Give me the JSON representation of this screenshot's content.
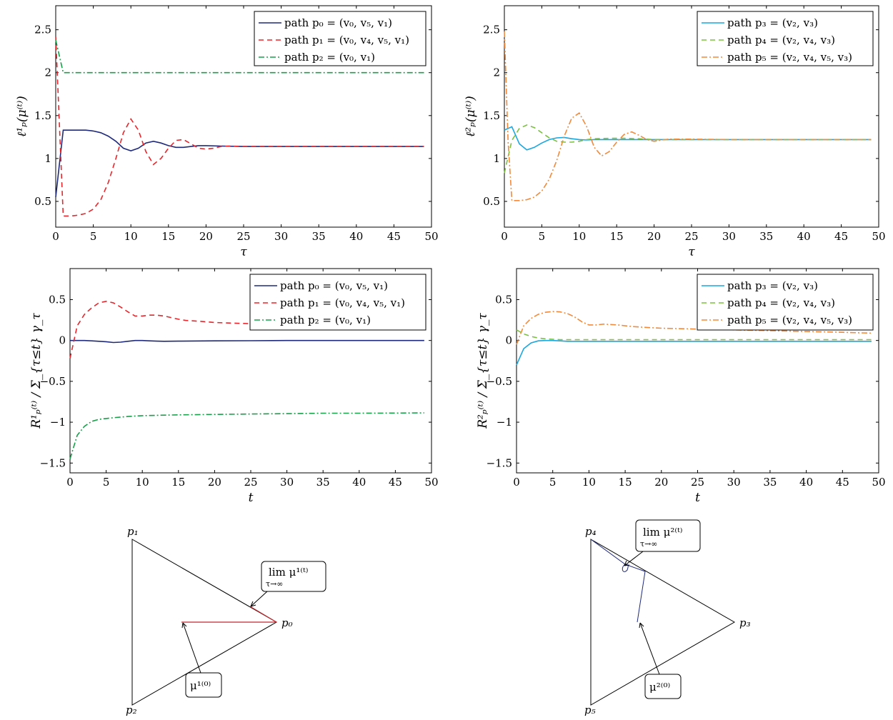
{
  "charts": [
    {
      "type": "line",
      "xlabel": "τ",
      "ylabel": "ℓ¹ₚ(μ⁽ᵗ⁾)",
      "xlim": [
        0,
        50
      ],
      "ylim": [
        0.2,
        2.78
      ],
      "xticks": [
        "0",
        "5",
        "10",
        "15",
        "20",
        "25",
        "30",
        "35",
        "40",
        "45",
        "50"
      ],
      "yticks": [
        "0.5",
        "1",
        "1.5",
        "2",
        "2.5"
      ],
      "ytick_values": [
        0.5,
        1,
        1.5,
        2,
        2.5
      ],
      "legend_position": "top-right",
      "series": [
        {
          "name": "path p₀ = (v₀, v₅, v₁)",
          "color": "#1f2a7a",
          "dash": "solid",
          "x": [
            0,
            1,
            2,
            3,
            4,
            5,
            6,
            7,
            8,
            9,
            10,
            11,
            12,
            13,
            14,
            15,
            16,
            17,
            18,
            19,
            20,
            22,
            25,
            30,
            35,
            40,
            45,
            49
          ],
          "y": [
            0.55,
            1.33,
            1.33,
            1.33,
            1.33,
            1.32,
            1.3,
            1.26,
            1.2,
            1.12,
            1.09,
            1.12,
            1.18,
            1.2,
            1.18,
            1.15,
            1.13,
            1.13,
            1.14,
            1.15,
            1.15,
            1.145,
            1.14,
            1.14,
            1.14,
            1.14,
            1.14,
            1.14
          ]
        },
        {
          "name": "path p₁ = (v₀, v₄, v₅, v₁)",
          "color": "#e8262b",
          "dash": "7,5",
          "x": [
            0,
            1,
            2,
            3,
            4,
            5,
            6,
            7,
            8,
            9,
            10,
            11,
            12,
            13,
            14,
            15,
            16,
            17,
            18,
            19,
            20,
            21,
            22,
            23,
            25,
            30,
            35,
            40,
            45,
            49
          ],
          "y": [
            2.42,
            0.33,
            0.33,
            0.34,
            0.36,
            0.41,
            0.52,
            0.72,
            1.0,
            1.3,
            1.46,
            1.33,
            1.08,
            0.93,
            1.0,
            1.12,
            1.21,
            1.22,
            1.17,
            1.12,
            1.11,
            1.12,
            1.14,
            1.145,
            1.14,
            1.14,
            1.14,
            1.14,
            1.14,
            1.14
          ]
        },
        {
          "name": "path p₂ = (v₀, v₁)",
          "color": "#19a04a",
          "dash": "8,3,2,3",
          "x": [
            0,
            1,
            5,
            10,
            20,
            30,
            40,
            49
          ],
          "y": [
            2.38,
            2.0,
            2.0,
            2.0,
            2.0,
            2.0,
            2.0,
            2.0
          ]
        }
      ]
    },
    {
      "type": "line",
      "xlabel": "τ",
      "ylabel": "ℓ²ₚ(μ⁽ᵗ⁾)",
      "xlim": [
        0,
        50
      ],
      "ylim": [
        0.2,
        2.78
      ],
      "xticks": [
        "0",
        "5",
        "10",
        "15",
        "20",
        "25",
        "30",
        "35",
        "40",
        "45",
        "50"
      ],
      "yticks": [
        "0.5",
        "1",
        "1.5",
        "2",
        "2.5"
      ],
      "ytick_values": [
        0.5,
        1,
        1.5,
        2,
        2.5
      ],
      "legend_position": "top-right",
      "series": [
        {
          "name": "path p₃ = (v₂, v₃)",
          "color": "#1aa7e0",
          "dash": "solid",
          "x": [
            0,
            1,
            2,
            3,
            4,
            5,
            6,
            7,
            8,
            9,
            10,
            11,
            12,
            15,
            20,
            25,
            30,
            35,
            40,
            45,
            49
          ],
          "y": [
            1.33,
            1.37,
            1.17,
            1.1,
            1.13,
            1.18,
            1.22,
            1.24,
            1.245,
            1.23,
            1.22,
            1.215,
            1.22,
            1.22,
            1.22,
            1.22,
            1.22,
            1.22,
            1.22,
            1.22,
            1.22
          ]
        },
        {
          "name": "path p₄ = (v₂, v₄, v₃)",
          "color": "#7cc142",
          "dash": "7,5",
          "x": [
            0,
            1,
            2,
            3,
            4,
            5,
            6,
            7,
            8,
            9,
            10,
            11,
            12,
            14,
            16,
            18,
            20,
            25,
            30,
            35,
            40,
            45,
            49
          ],
          "y": [
            0.83,
            1.21,
            1.35,
            1.39,
            1.36,
            1.3,
            1.24,
            1.2,
            1.19,
            1.19,
            1.2,
            1.22,
            1.23,
            1.235,
            1.235,
            1.23,
            1.22,
            1.22,
            1.22,
            1.22,
            1.22,
            1.22,
            1.22
          ]
        },
        {
          "name": "path p₅ = (v₂, v₄, v₅, v₃)",
          "color": "#f28a3c",
          "dash": "8,3,2,3",
          "x": [
            0,
            0.5,
            1,
            2,
            3,
            4,
            5,
            6,
            7,
            8,
            9,
            10,
            11,
            12,
            13,
            14,
            15,
            16,
            17,
            18,
            19,
            20,
            21,
            22,
            25,
            30,
            35,
            40,
            45,
            49
          ],
          "y": [
            2.48,
            1.2,
            0.51,
            0.51,
            0.52,
            0.55,
            0.62,
            0.76,
            0.98,
            1.26,
            1.47,
            1.53,
            1.37,
            1.13,
            1.03,
            1.08,
            1.19,
            1.28,
            1.31,
            1.27,
            1.22,
            1.2,
            1.215,
            1.225,
            1.225,
            1.22,
            1.22,
            1.22,
            1.22,
            1.22
          ]
        }
      ]
    },
    {
      "type": "line",
      "xlabel": "t",
      "ylabel": "R¹ₚ⁽ᵗ⁾ / Σ_{τ≤t} γ_τ",
      "xlim": [
        0,
        50
      ],
      "ylim": [
        -1.62,
        0.88
      ],
      "xticks": [
        "0",
        "5",
        "10",
        "15",
        "20",
        "25",
        "30",
        "35",
        "40",
        "45",
        "50"
      ],
      "yticks": [
        "0.5",
        "0",
        "−0.5",
        "−1",
        "−1.5"
      ],
      "ytick_values": [
        0.5,
        0,
        -0.5,
        -1,
        -1.5
      ],
      "legend_position": "top-right",
      "series": [
        {
          "name": "path p₀ = (v₀, v₅, v₁)",
          "color": "#1f2a7a",
          "dash": "solid",
          "x": [
            0,
            1,
            2,
            3,
            4,
            5,
            6,
            7,
            8,
            9,
            10,
            11,
            12,
            13,
            15,
            20,
            25,
            30,
            40,
            49
          ],
          "y": [
            0.0,
            0.0,
            0.0,
            -0.005,
            -0.01,
            -0.015,
            -0.025,
            -0.02,
            -0.01,
            0.0,
            0.0,
            -0.005,
            -0.008,
            -0.01,
            -0.008,
            -0.005,
            -0.003,
            0.0,
            0.0,
            0.0
          ]
        },
        {
          "name": "path p₁ = (v₀, v₄, v₅, v₁)",
          "color": "#e8262b",
          "dash": "7,5",
          "x": [
            0,
            1,
            2,
            3,
            4,
            5,
            6,
            7,
            8,
            9,
            10,
            11,
            12,
            13,
            14,
            15,
            16,
            18,
            20,
            25,
            30,
            35,
            40,
            45,
            49
          ],
          "y": [
            -0.22,
            0.18,
            0.32,
            0.4,
            0.46,
            0.48,
            0.46,
            0.41,
            0.35,
            0.3,
            0.3,
            0.31,
            0.31,
            0.3,
            0.28,
            0.26,
            0.245,
            0.235,
            0.22,
            0.205,
            0.19,
            0.18,
            0.17,
            0.16,
            0.15
          ]
        },
        {
          "name": "path p₂ = (v₀, v₁)",
          "color": "#19a04a",
          "dash": "8,3,2,3",
          "x": [
            0,
            1,
            2,
            3,
            4,
            5,
            6,
            8,
            10,
            15,
            20,
            25,
            30,
            35,
            40,
            45,
            49
          ],
          "y": [
            -1.45,
            -1.16,
            -1.05,
            -0.99,
            -0.965,
            -0.955,
            -0.945,
            -0.93,
            -0.92,
            -0.91,
            -0.905,
            -0.9,
            -0.895,
            -0.89,
            -0.89,
            -0.888,
            -0.886
          ]
        }
      ]
    },
    {
      "type": "line",
      "xlabel": "t",
      "ylabel": "R²ₚ⁽ᵗ⁾ / Σ_{τ≤t} γ_τ",
      "xlim": [
        0,
        50
      ],
      "ylim": [
        -1.62,
        0.88
      ],
      "xticks": [
        "0",
        "5",
        "10",
        "15",
        "20",
        "25",
        "30",
        "35",
        "40",
        "45",
        "50"
      ],
      "yticks": [
        "0.5",
        "0",
        "−0.5",
        "−1",
        "−1.5"
      ],
      "ytick_values": [
        0.5,
        0,
        -0.5,
        -1,
        -1.5
      ],
      "legend_position": "top-right",
      "series": [
        {
          "name": "path p₃ = (v₂, v₃)",
          "color": "#1aa7e0",
          "dash": "solid",
          "x": [
            0,
            1,
            2,
            3,
            4,
            5,
            6,
            7,
            8,
            10,
            15,
            20,
            30,
            40,
            49
          ],
          "y": [
            -0.3,
            -0.1,
            -0.03,
            -0.005,
            0.0,
            0.0,
            -0.005,
            -0.01,
            -0.01,
            -0.01,
            -0.01,
            -0.01,
            -0.01,
            -0.01,
            -0.01
          ]
        },
        {
          "name": "path p₄ = (v₂, v₄, v₃)",
          "color": "#7cc142",
          "dash": "7,5",
          "x": [
            0,
            1,
            2,
            3,
            4,
            5,
            6,
            8,
            10,
            15,
            20,
            30,
            40,
            49
          ],
          "y": [
            0.13,
            0.08,
            0.05,
            0.03,
            0.02,
            0.015,
            0.01,
            0.01,
            0.01,
            0.01,
            0.01,
            0.01,
            0.01,
            0.01
          ]
        },
        {
          "name": "path p₅ = (v₂, v₄, v₅, v₃)",
          "color": "#f28a3c",
          "dash": "8,3,2,3",
          "x": [
            0,
            1,
            2,
            3,
            4,
            5,
            6,
            7,
            8,
            9,
            10,
            11,
            12,
            14,
            16,
            18,
            20,
            25,
            30,
            35,
            40,
            45,
            49
          ],
          "y": [
            -0.05,
            0.18,
            0.27,
            0.32,
            0.345,
            0.355,
            0.35,
            0.33,
            0.29,
            0.23,
            0.19,
            0.19,
            0.2,
            0.19,
            0.17,
            0.16,
            0.15,
            0.14,
            0.13,
            0.12,
            0.11,
            0.1,
            0.09
          ]
        }
      ]
    }
  ],
  "simplex_left": {
    "labels": {
      "top": "p₁",
      "right": "p₀",
      "bottom": "p₂"
    },
    "annotation_limit": "lim μ¹⁽ᵗ⁾",
    "annotation_limit_sub": "τ→∞",
    "annotation_start": "μ¹⁽⁰⁾",
    "color": "#c0282d"
  },
  "simplex_right": {
    "labels": {
      "top": "p₄",
      "right": "p₃",
      "bottom": "p₅"
    },
    "annotation_limit": "lim μ²⁽ᵗ⁾",
    "annotation_limit_sub": "τ→∞",
    "annotation_start": "μ²⁽⁰⁾",
    "color": "#1f2a7a"
  }
}
